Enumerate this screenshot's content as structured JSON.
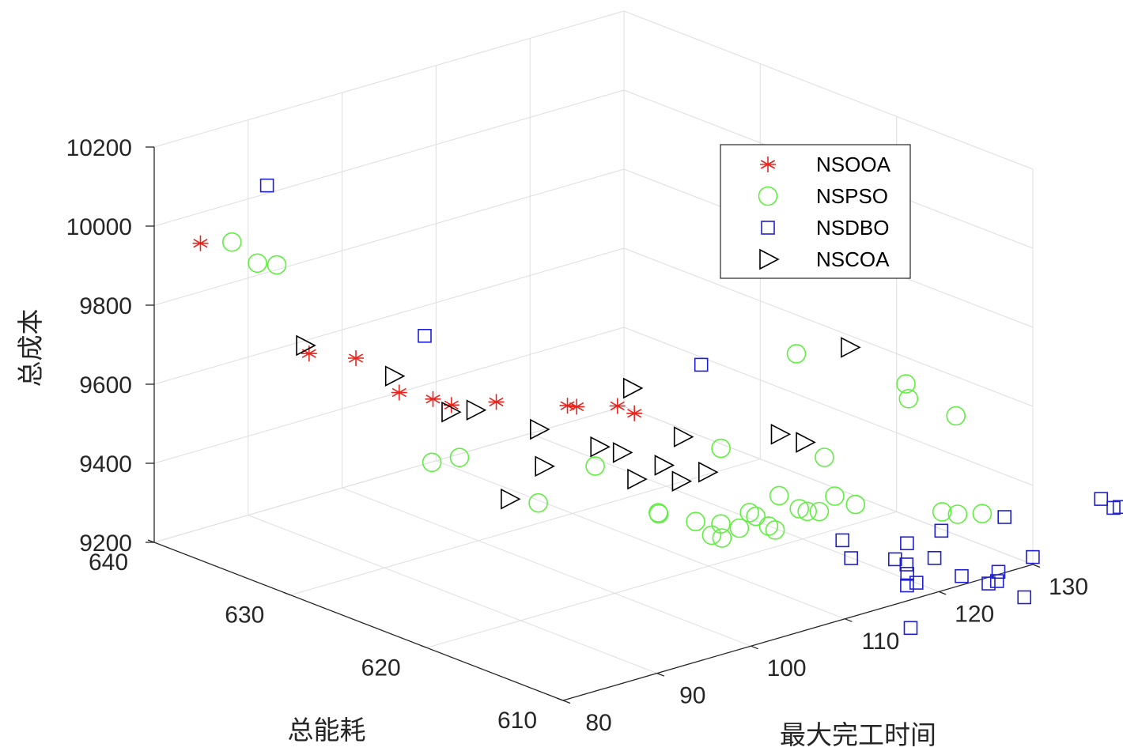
{
  "chart_data": {
    "type": "scatter3d",
    "xlabel": "最大完工时间",
    "ylabel": "总能耗",
    "zlabel": "总成本",
    "xlim": [
      80,
      130
    ],
    "ylim": [
      610,
      640
    ],
    "zlim": [
      9200,
      10200
    ],
    "xticks": [
      "80",
      "90",
      "100",
      "110",
      "120",
      "130"
    ],
    "yticks": [
      "610",
      "620",
      "630",
      "640"
    ],
    "zticks": [
      "9200",
      "9400",
      "9600",
      "9800",
      "10000",
      "10200"
    ],
    "grid": true,
    "legend_position": "top-right",
    "series": [
      {
        "name": "NSOOA",
        "marker": "asterisk",
        "color": "#e8241c",
        "points": [
          [
            82.6,
            638.4,
            9960
          ],
          [
            84.3,
            631.6,
            9760
          ],
          [
            85.8,
            629.2,
            9770
          ],
          [
            84.9,
            625.4,
            9740
          ],
          [
            85.3,
            623.2,
            9750
          ],
          [
            86.1,
            622.4,
            9740
          ],
          [
            88.7,
            620.9,
            9750
          ],
          [
            91.2,
            617.4,
            9770
          ],
          [
            91.6,
            617.0,
            9770
          ],
          [
            94.2,
            615.8,
            9770
          ],
          [
            94.7,
            614.9,
            9760
          ]
        ]
      },
      {
        "name": "NSPSO",
        "marker": "circle",
        "color": "#5fef3f",
        "points": [
          [
            81.6,
            635.4,
            10010
          ],
          [
            81.7,
            633.6,
            9980
          ],
          [
            82.6,
            632.8,
            9980
          ],
          [
            84.6,
            622.8,
            9600
          ],
          [
            85.8,
            621.6,
            9620
          ],
          [
            87.8,
            617.2,
            9550
          ],
          [
            92.7,
            616.4,
            9620
          ],
          [
            92.8,
            611.8,
            9560
          ],
          [
            94.2,
            612.8,
            9540
          ],
          [
            95.7,
            611.1,
            9530
          ],
          [
            101.3,
            613.1,
            9650
          ],
          [
            96.4,
            610.4,
            9500
          ],
          [
            97.2,
            610.2,
            9490
          ],
          [
            98.1,
            610.9,
            9510
          ],
          [
            99.2,
            610.3,
            9500
          ],
          [
            100.8,
            610.2,
            9520
          ],
          [
            101.0,
            610.8,
            9520
          ],
          [
            101.3,
            609.6,
            9500
          ],
          [
            101.7,
            609.4,
            9490
          ],
          [
            103.0,
            610.0,
            9560
          ],
          [
            103.4,
            608.8,
            9540
          ],
          [
            104.1,
            608.7,
            9530
          ],
          [
            104.8,
            608.3,
            9530
          ],
          [
            106.8,
            609.3,
            9640
          ],
          [
            106.3,
            608.2,
            9560
          ],
          [
            107.5,
            607.5,
            9540
          ],
          [
            110.2,
            613.7,
            9820
          ],
          [
            114.6,
            608.7,
            9780
          ],
          [
            114.3,
            608.3,
            9750
          ],
          [
            117.6,
            607.1,
            9700
          ],
          [
            114.1,
            605.7,
            9500
          ],
          [
            115.9,
            605.8,
            9480
          ],
          [
            117.5,
            605.1,
            9480
          ]
        ]
      },
      {
        "name": "NSDBO",
        "marker": "square",
        "color": "#1f1fd2",
        "points": [
          [
            83.3,
            634.0,
            10160
          ],
          [
            87.9,
            625.6,
            9860
          ],
          [
            100.8,
            614.2,
            9850
          ],
          [
            104.8,
            606.6,
            9480
          ],
          [
            105.0,
            606.1,
            9440
          ],
          [
            107.5,
            604.6,
            9440
          ],
          [
            109.5,
            605.1,
            9460
          ],
          [
            108.0,
            604.1,
            9430
          ],
          [
            107.2,
            603.5,
            9420
          ],
          [
            106.6,
            603.1,
            9400
          ],
          [
            107.6,
            603.1,
            9400
          ],
          [
            105.1,
            601.8,
            9320
          ],
          [
            110.1,
            603.5,
            9440
          ],
          [
            111.7,
            604.1,
            9490
          ],
          [
            111.4,
            602.4,
            9400
          ],
          [
            113.1,
            601.6,
            9380
          ],
          [
            114.3,
            601.7,
            9400
          ],
          [
            114.0,
            601.6,
            9380
          ],
          [
            117.7,
            603.6,
            9490
          ],
          [
            115.6,
            600.7,
            9340
          ],
          [
            118.1,
            601.8,
            9410
          ],
          [
            125.8,
            602.1,
            9500
          ],
          [
            126.4,
            601.6,
            9480
          ],
          [
            126.9,
            601.5,
            9480
          ],
          [
            128.1,
            601.4,
            9500
          ]
        ]
      },
      {
        "name": "NSCOA",
        "marker": "triangle-right",
        "color": "#000000",
        "points": [
          [
            82.8,
            630.9,
            9800
          ],
          [
            85.9,
            626.5,
            9760
          ],
          [
            87.4,
            623.4,
            9700
          ],
          [
            88.6,
            622.4,
            9710
          ],
          [
            91.3,
            619.6,
            9680
          ],
          [
            94.1,
            617.1,
            9650
          ],
          [
            95.2,
            616.2,
            9640
          ],
          [
            91.4,
            619.3,
            9590
          ],
          [
            96.0,
            616.0,
            9800
          ],
          [
            87.9,
            619.4,
            9530
          ],
          [
            95.0,
            615.0,
            9590
          ],
          [
            97.6,
            614.8,
            9610
          ],
          [
            99.5,
            614.7,
            9670
          ],
          [
            98.0,
            613.8,
            9580
          ],
          [
            99.8,
            613.1,
            9600
          ],
          [
            105.2,
            611.5,
            9680
          ],
          [
            106.7,
            610.7,
            9660
          ],
          [
            113.8,
            612.3,
            9830
          ]
        ]
      }
    ]
  }
}
